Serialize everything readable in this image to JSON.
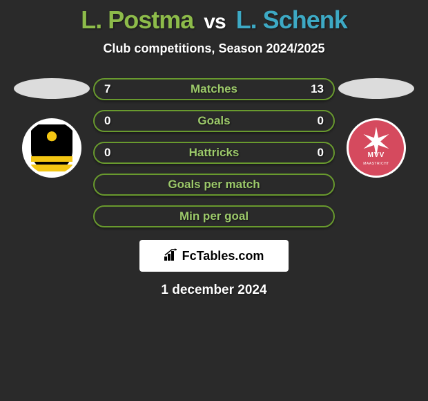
{
  "colors": {
    "background": "#2a2a2a",
    "player1": "#8dbb4a",
    "player2": "#3da9c4",
    "pill_stroke": "#699a2e",
    "pill_label": "#9cc96a",
    "white": "#ffffff"
  },
  "header": {
    "player1_name": "L. Postma",
    "vs": "vs",
    "player2_name": "L. Schenk",
    "subtitle": "Club competitions, Season 2024/2025"
  },
  "clubs": {
    "left_label": "VITESSE",
    "right_label": "MVV",
    "right_sub": "MAASTRICHT"
  },
  "stats": [
    {
      "label": "Matches",
      "val_left": "7",
      "val_right": "13"
    },
    {
      "label": "Goals",
      "val_left": "0",
      "val_right": "0"
    },
    {
      "label": "Hattricks",
      "val_left": "0",
      "val_right": "0"
    },
    {
      "label": "Goals per match",
      "val_left": "",
      "val_right": ""
    },
    {
      "label": "Min per goal",
      "val_left": "",
      "val_right": ""
    }
  ],
  "brand": "FcTables.com",
  "date": "1 december 2024"
}
